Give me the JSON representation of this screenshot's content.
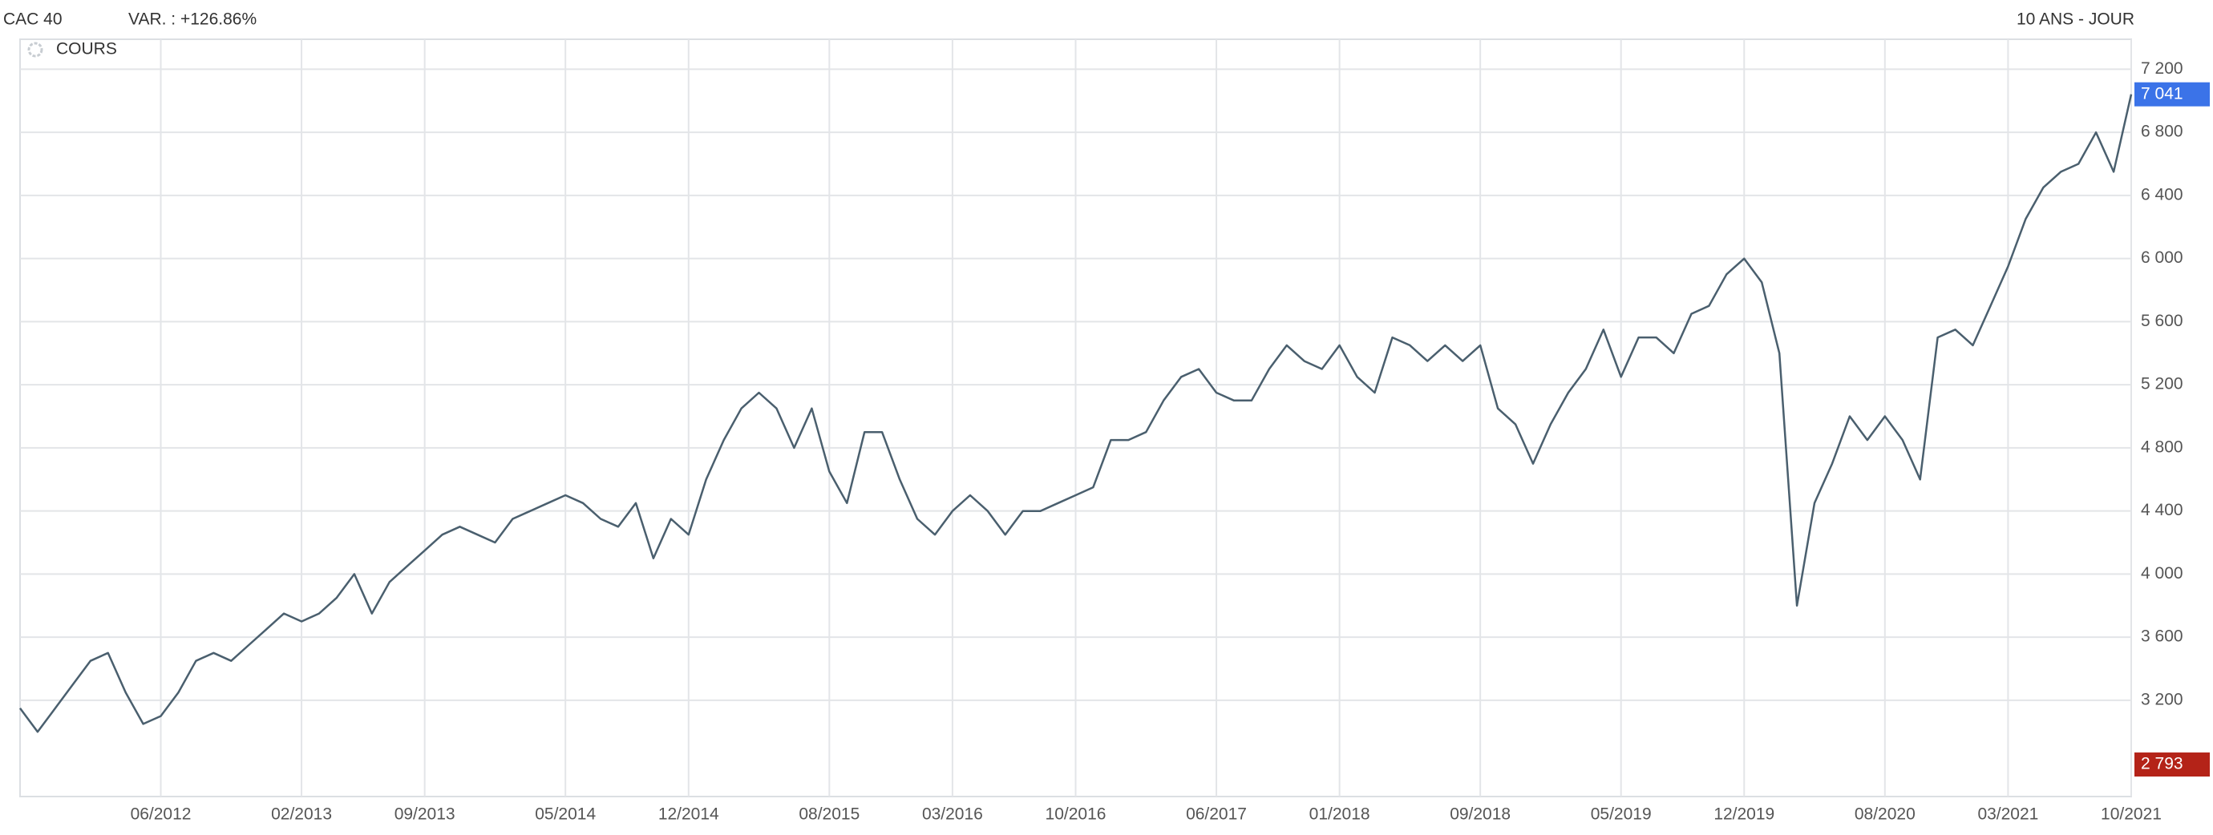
{
  "chart_data": {
    "type": "line",
    "title": "CAC 40",
    "subtitle": "VAR. : +126.86%",
    "period": "10 ANS - JOUR",
    "x": [
      "10/2011",
      "11/2011",
      "12/2011",
      "01/2012",
      "02/2012",
      "03/2012",
      "04/2012",
      "05/2012",
      "06/2012",
      "07/2012",
      "08/2012",
      "09/2012",
      "10/2012",
      "11/2012",
      "12/2012",
      "01/2013",
      "02/2013",
      "03/2013",
      "04/2013",
      "05/2013",
      "06/2013",
      "07/2013",
      "08/2013",
      "09/2013",
      "10/2013",
      "11/2013",
      "12/2013",
      "01/2014",
      "02/2014",
      "03/2014",
      "04/2014",
      "05/2014",
      "06/2014",
      "07/2014",
      "08/2014",
      "09/2014",
      "10/2014",
      "11/2014",
      "12/2014",
      "01/2015",
      "02/2015",
      "03/2015",
      "04/2015",
      "05/2015",
      "06/2015",
      "07/2015",
      "08/2015",
      "09/2015",
      "10/2015",
      "11/2015",
      "12/2015",
      "01/2016",
      "02/2016",
      "03/2016",
      "04/2016",
      "05/2016",
      "06/2016",
      "07/2016",
      "08/2016",
      "09/2016",
      "10/2016",
      "11/2016",
      "12/2016",
      "01/2017",
      "02/2017",
      "03/2017",
      "04/2017",
      "05/2017",
      "06/2017",
      "07/2017",
      "08/2017",
      "09/2017",
      "10/2017",
      "11/2017",
      "12/2017",
      "01/2018",
      "02/2018",
      "03/2018",
      "04/2018",
      "05/2018",
      "06/2018",
      "07/2018",
      "08/2018",
      "09/2018",
      "10/2018",
      "11/2018",
      "12/2018",
      "01/2019",
      "02/2019",
      "03/2019",
      "04/2019",
      "05/2019",
      "06/2019",
      "07/2019",
      "08/2019",
      "09/2019",
      "10/2019",
      "11/2019",
      "12/2019",
      "01/2020",
      "02/2020",
      "03/2020",
      "04/2020",
      "05/2020",
      "06/2020",
      "07/2020",
      "08/2020",
      "09/2020",
      "10/2020",
      "11/2020",
      "12/2020",
      "01/2021",
      "02/2021",
      "03/2021",
      "04/2021",
      "05/2021",
      "06/2021",
      "07/2021",
      "08/2021",
      "09/2021",
      "10/2021"
    ],
    "series": [
      {
        "name": "COURS",
        "color": "#4a5f6e",
        "values": [
          3150,
          3000,
          3150,
          3300,
          3450,
          3500,
          3250,
          3050,
          3100,
          3250,
          3450,
          3500,
          3450,
          3550,
          3650,
          3750,
          3700,
          3750,
          3850,
          4000,
          3750,
          3950,
          4050,
          4150,
          4250,
          4300,
          4250,
          4200,
          4350,
          4400,
          4450,
          4500,
          4450,
          4350,
          4300,
          4450,
          4100,
          4350,
          4250,
          4600,
          4850,
          5050,
          5150,
          5050,
          4800,
          5050,
          4650,
          4450,
          4900,
          4900,
          4600,
          4350,
          4250,
          4400,
          4500,
          4400,
          4250,
          4400,
          4400,
          4450,
          4500,
          4550,
          4850,
          4850,
          4900,
          5100,
          5250,
          5300,
          5150,
          5100,
          5100,
          5300,
          5450,
          5350,
          5300,
          5450,
          5250,
          5150,
          5500,
          5450,
          5350,
          5450,
          5350,
          5450,
          5050,
          4950,
          4700,
          4950,
          5150,
          5300,
          5550,
          5250,
          5500,
          5500,
          5400,
          5650,
          5700,
          5900,
          6000,
          5850,
          5400,
          3800,
          4450,
          4700,
          5000,
          4850,
          5000,
          4850,
          4600,
          5500,
          5550,
          5450,
          5700,
          5950,
          6250,
          6450,
          6550,
          6600,
          6800,
          6550,
          7041
        ]
      }
    ],
    "xticks": [
      "06/2012",
      "02/2013",
      "09/2013",
      "05/2014",
      "12/2014",
      "08/2015",
      "03/2016",
      "10/2016",
      "06/2017",
      "01/2018",
      "09/2018",
      "05/2019",
      "12/2019",
      "08/2020",
      "03/2021",
      "10/2021"
    ],
    "ylim": [
      2590,
      7390
    ],
    "yticks": [
      {
        "value": 3200,
        "label": "3 200"
      },
      {
        "value": 3600,
        "label": "3 600"
      },
      {
        "value": 4000,
        "label": "4 000"
      },
      {
        "value": 4400,
        "label": "4 400"
      },
      {
        "value": 4800,
        "label": "4 800"
      },
      {
        "value": 5200,
        "label": "5 200"
      },
      {
        "value": 5600,
        "label": "5 600"
      },
      {
        "value": 6000,
        "label": "6 000"
      },
      {
        "value": 6400,
        "label": "6 400"
      },
      {
        "value": 6800,
        "label": "6 800"
      },
      {
        "value": 7200,
        "label": "7 200"
      }
    ],
    "last_marker": {
      "value": 7041,
      "label": "7 041",
      "color": "#3b73e8"
    },
    "min_marker": {
      "value": 2793,
      "label": "2 793",
      "color": "#b42318"
    },
    "grid": true
  }
}
